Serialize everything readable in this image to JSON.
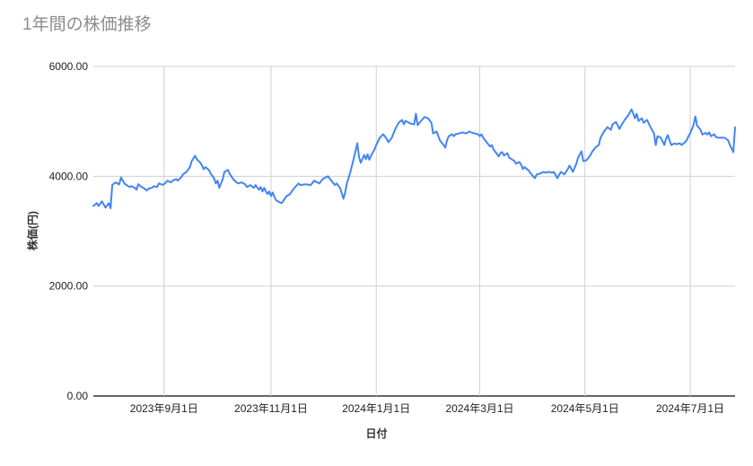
{
  "page": {
    "background": "#ffffff"
  },
  "chart_data": {
    "type": "line",
    "title": "1年間の株価推移",
    "xlabel": "日付",
    "ylabel": "株価(円)",
    "ylim": [
      0,
      6000
    ],
    "grid": true,
    "legend": "none",
    "yticks": [
      {
        "value": 0,
        "label": "0.00"
      },
      {
        "value": 2000,
        "label": "2000.00"
      },
      {
        "value": 4000,
        "label": "4000.00"
      },
      {
        "value": 6000,
        "label": "6000.00"
      }
    ],
    "x_span_days": 372,
    "xticks": [
      {
        "day": 41,
        "label": "2023年9月1日"
      },
      {
        "day": 103,
        "label": "2023年11月1日"
      },
      {
        "day": 164,
        "label": "2024年1月1日"
      },
      {
        "day": 224,
        "label": "2024年3月1日"
      },
      {
        "day": 285,
        "label": "2024年5月1日"
      },
      {
        "day": 346,
        "label": "2024年7月1日"
      }
    ],
    "series": [
      {
        "name": "株価",
        "color": "#4285f4",
        "points": [
          [
            0,
            3460
          ],
          [
            2,
            3510
          ],
          [
            3,
            3460
          ],
          [
            5,
            3545
          ],
          [
            7,
            3430
          ],
          [
            9,
            3510
          ],
          [
            10,
            3415
          ],
          [
            11,
            3845
          ],
          [
            13,
            3890
          ],
          [
            15,
            3850
          ],
          [
            16,
            3980
          ],
          [
            18,
            3870
          ],
          [
            19,
            3845
          ],
          [
            21,
            3805
          ],
          [
            22,
            3820
          ],
          [
            24,
            3790
          ],
          [
            25,
            3755
          ],
          [
            26,
            3855
          ],
          [
            28,
            3805
          ],
          [
            29,
            3790
          ],
          [
            31,
            3740
          ],
          [
            32,
            3775
          ],
          [
            34,
            3790
          ],
          [
            35,
            3820
          ],
          [
            37,
            3805
          ],
          [
            38,
            3870
          ],
          [
            40,
            3845
          ],
          [
            41,
            3855
          ],
          [
            43,
            3920
          ],
          [
            45,
            3890
          ],
          [
            46,
            3920
          ],
          [
            48,
            3950
          ],
          [
            49,
            3920
          ],
          [
            51,
            3985
          ],
          [
            52,
            4035
          ],
          [
            54,
            4080
          ],
          [
            56,
            4165
          ],
          [
            57,
            4275
          ],
          [
            59,
            4375
          ],
          [
            60,
            4310
          ],
          [
            62,
            4245
          ],
          [
            63,
            4195
          ],
          [
            64,
            4130
          ],
          [
            65,
            4165
          ],
          [
            67,
            4115
          ],
          [
            68,
            4050
          ],
          [
            70,
            3965
          ],
          [
            71,
            3870
          ],
          [
            72,
            3920
          ],
          [
            73,
            3790
          ],
          [
            75,
            3950
          ],
          [
            76,
            4080
          ],
          [
            78,
            4115
          ],
          [
            79,
            4050
          ],
          [
            81,
            3950
          ],
          [
            83,
            3890
          ],
          [
            84,
            3870
          ],
          [
            86,
            3890
          ],
          [
            88,
            3855
          ],
          [
            89,
            3805
          ],
          [
            91,
            3840
          ],
          [
            93,
            3790
          ],
          [
            94,
            3840
          ],
          [
            96,
            3755
          ],
          [
            97,
            3805
          ],
          [
            98,
            3725
          ],
          [
            99,
            3790
          ],
          [
            100,
            3725
          ],
          [
            101,
            3675
          ],
          [
            102,
            3725
          ],
          [
            103,
            3640
          ],
          [
            104,
            3705
          ],
          [
            105,
            3625
          ],
          [
            106,
            3560
          ],
          [
            107,
            3545
          ],
          [
            109,
            3510
          ],
          [
            110,
            3545
          ],
          [
            111,
            3595
          ],
          [
            112,
            3640
          ],
          [
            114,
            3675
          ],
          [
            115,
            3725
          ],
          [
            117,
            3805
          ],
          [
            119,
            3870
          ],
          [
            120,
            3840
          ],
          [
            123,
            3855
          ],
          [
            126,
            3840
          ],
          [
            128,
            3920
          ],
          [
            131,
            3870
          ],
          [
            133,
            3950
          ],
          [
            136,
            4000
          ],
          [
            138,
            3920
          ],
          [
            140,
            3840
          ],
          [
            141,
            3870
          ],
          [
            143,
            3790
          ],
          [
            145,
            3590
          ],
          [
            146,
            3705
          ],
          [
            147,
            3870
          ],
          [
            149,
            4080
          ],
          [
            151,
            4325
          ],
          [
            153,
            4600
          ],
          [
            154,
            4355
          ],
          [
            155,
            4245
          ],
          [
            157,
            4390
          ],
          [
            158,
            4310
          ],
          [
            159,
            4400
          ],
          [
            160,
            4300
          ],
          [
            161,
            4375
          ],
          [
            163,
            4490
          ],
          [
            164,
            4570
          ],
          [
            166,
            4700
          ],
          [
            168,
            4765
          ],
          [
            170,
            4685
          ],
          [
            171,
            4620
          ],
          [
            173,
            4700
          ],
          [
            175,
            4860
          ],
          [
            177,
            4975
          ],
          [
            179,
            5025
          ],
          [
            180,
            4945
          ],
          [
            181,
            5010
          ],
          [
            183,
            4975
          ],
          [
            184,
            4960
          ],
          [
            186,
            4945
          ],
          [
            187,
            5140
          ],
          [
            188,
            4930
          ],
          [
            190,
            5010
          ],
          [
            192,
            5080
          ],
          [
            194,
            5055
          ],
          [
            196,
            4975
          ],
          [
            197,
            4780
          ],
          [
            199,
            4815
          ],
          [
            200,
            4730
          ],
          [
            201,
            4650
          ],
          [
            203,
            4570
          ],
          [
            204,
            4520
          ],
          [
            205,
            4650
          ],
          [
            206,
            4730
          ],
          [
            208,
            4765
          ],
          [
            209,
            4730
          ],
          [
            210,
            4765
          ],
          [
            212,
            4780
          ],
          [
            214,
            4800
          ],
          [
            216,
            4780
          ],
          [
            218,
            4815
          ],
          [
            219,
            4800
          ],
          [
            221,
            4780
          ],
          [
            223,
            4765
          ],
          [
            224,
            4730
          ],
          [
            225,
            4765
          ],
          [
            226,
            4700
          ],
          [
            228,
            4620
          ],
          [
            230,
            4540
          ],
          [
            231,
            4570
          ],
          [
            232,
            4490
          ],
          [
            234,
            4405
          ],
          [
            235,
            4360
          ],
          [
            236,
            4420
          ],
          [
            237,
            4440
          ],
          [
            238,
            4380
          ],
          [
            240,
            4420
          ],
          [
            241,
            4340
          ],
          [
            244,
            4280
          ],
          [
            245,
            4230
          ],
          [
            247,
            4260
          ],
          [
            248,
            4210
          ],
          [
            249,
            4130
          ],
          [
            250,
            4165
          ],
          [
            252,
            4115
          ],
          [
            254,
            4035
          ],
          [
            256,
            3965
          ],
          [
            257,
            4035
          ],
          [
            259,
            4050
          ],
          [
            261,
            4080
          ],
          [
            262,
            4065
          ],
          [
            264,
            4080
          ],
          [
            266,
            4065
          ],
          [
            267,
            4080
          ],
          [
            269,
            3965
          ],
          [
            271,
            4080
          ],
          [
            273,
            4035
          ],
          [
            275,
            4130
          ],
          [
            276,
            4195
          ],
          [
            278,
            4080
          ],
          [
            280,
            4230
          ],
          [
            281,
            4340
          ],
          [
            283,
            4455
          ],
          [
            284,
            4275
          ],
          [
            286,
            4295
          ],
          [
            288,
            4375
          ],
          [
            289,
            4440
          ],
          [
            291,
            4520
          ],
          [
            293,
            4570
          ],
          [
            294,
            4700
          ],
          [
            296,
            4815
          ],
          [
            298,
            4895
          ],
          [
            300,
            4845
          ],
          [
            301,
            4945
          ],
          [
            303,
            4990
          ],
          [
            305,
            4860
          ],
          [
            306,
            4925
          ],
          [
            308,
            5025
          ],
          [
            310,
            5105
          ],
          [
            312,
            5220
          ],
          [
            314,
            5055
          ],
          [
            315,
            5140
          ],
          [
            316,
            5010
          ],
          [
            318,
            5055
          ],
          [
            319,
            4975
          ],
          [
            321,
            5025
          ],
          [
            323,
            4895
          ],
          [
            325,
            4780
          ],
          [
            326,
            4570
          ],
          [
            327,
            4730
          ],
          [
            329,
            4700
          ],
          [
            331,
            4570
          ],
          [
            332,
            4685
          ],
          [
            333,
            4750
          ],
          [
            335,
            4570
          ],
          [
            337,
            4600
          ],
          [
            338,
            4585
          ],
          [
            340,
            4600
          ],
          [
            341,
            4570
          ],
          [
            343,
            4620
          ],
          [
            344,
            4660
          ],
          [
            345,
            4730
          ],
          [
            346,
            4780
          ],
          [
            348,
            4945
          ],
          [
            349,
            5090
          ],
          [
            350,
            4925
          ],
          [
            352,
            4845
          ],
          [
            353,
            4760
          ],
          [
            355,
            4790
          ],
          [
            356,
            4760
          ],
          [
            357,
            4800
          ],
          [
            358,
            4730
          ],
          [
            360,
            4765
          ],
          [
            361,
            4710
          ],
          [
            363,
            4700
          ],
          [
            364,
            4705
          ],
          [
            366,
            4700
          ],
          [
            368,
            4655
          ],
          [
            369,
            4570
          ],
          [
            370,
            4505
          ],
          [
            371,
            4440
          ],
          [
            372,
            4890
          ]
        ]
      }
    ],
    "colors": {
      "line": "#4285f4",
      "grid": "#d0d0d0",
      "axis": "#333333",
      "tick_text": "#222222",
      "title_text": "#8c8c8c"
    }
  }
}
